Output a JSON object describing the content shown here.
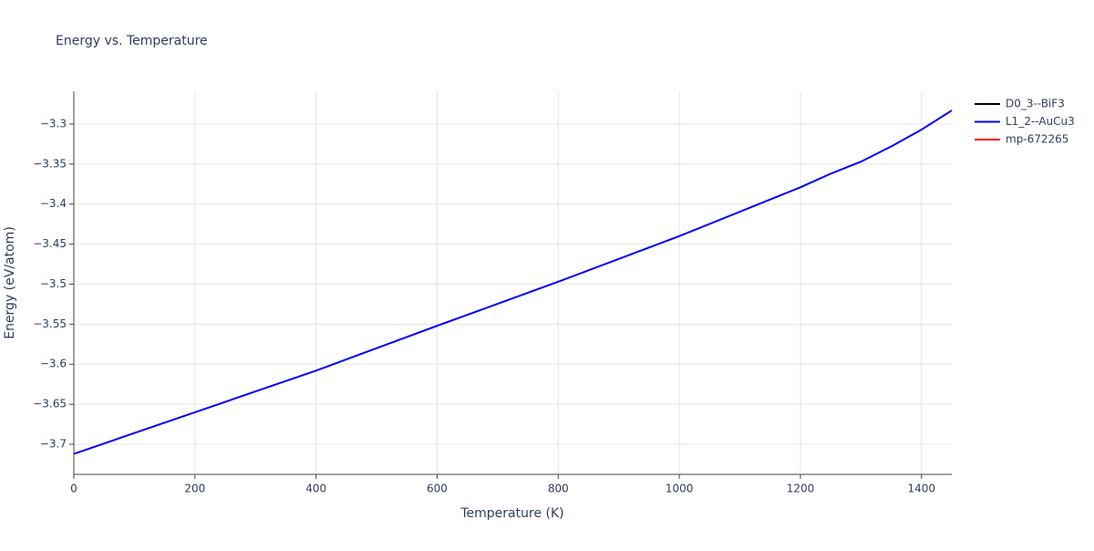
{
  "chart_data": {
    "type": "line",
    "title": "Energy vs. Temperature",
    "x_label": "Temperature (K)",
    "y_label": "Energy (eV/atom)",
    "x": [
      0,
      200,
      400,
      600,
      800,
      1000,
      1200,
      1250,
      1300,
      1350,
      1400,
      1450
    ],
    "series": [
      {
        "name": "D0_3--BiF3",
        "color": "#000000",
        "values": [
          null,
          null,
          null,
          null,
          null,
          null,
          null,
          null,
          null,
          null,
          null,
          null
        ]
      },
      {
        "name": "L1_2--AuCu3",
        "color": "#0000ff",
        "values": [
          -3.712,
          -3.66,
          -3.608,
          -3.552,
          -3.497,
          -3.44,
          -3.379,
          -3.362,
          -3.347,
          -3.328,
          -3.307,
          -3.283
        ]
      },
      {
        "name": "mp-672265",
        "color": "#ff0000",
        "values": [
          null,
          null,
          null,
          null,
          null,
          null,
          null,
          null,
          null,
          null,
          null,
          null
        ]
      }
    ],
    "xlim": [
      0,
      1450
    ],
    "xticks": [
      0,
      200,
      400,
      600,
      800,
      1000,
      1200,
      1400
    ],
    "ylim": [
      -3.7376,
      -3.259
    ],
    "yticks": [
      {
        "value": -3.7,
        "label": "−3.7"
      },
      {
        "value": -3.65,
        "label": "−3.65"
      },
      {
        "value": -3.6,
        "label": "−3.6"
      },
      {
        "value": -3.55,
        "label": "−3.55"
      },
      {
        "value": -3.5,
        "label": "−3.5"
      },
      {
        "value": -3.45,
        "label": "−3.45"
      },
      {
        "value": -3.4,
        "label": "−3.4"
      },
      {
        "value": -3.35,
        "label": "−3.35"
      },
      {
        "value": -3.3,
        "label": "−3.3"
      }
    ],
    "grid": true
  }
}
